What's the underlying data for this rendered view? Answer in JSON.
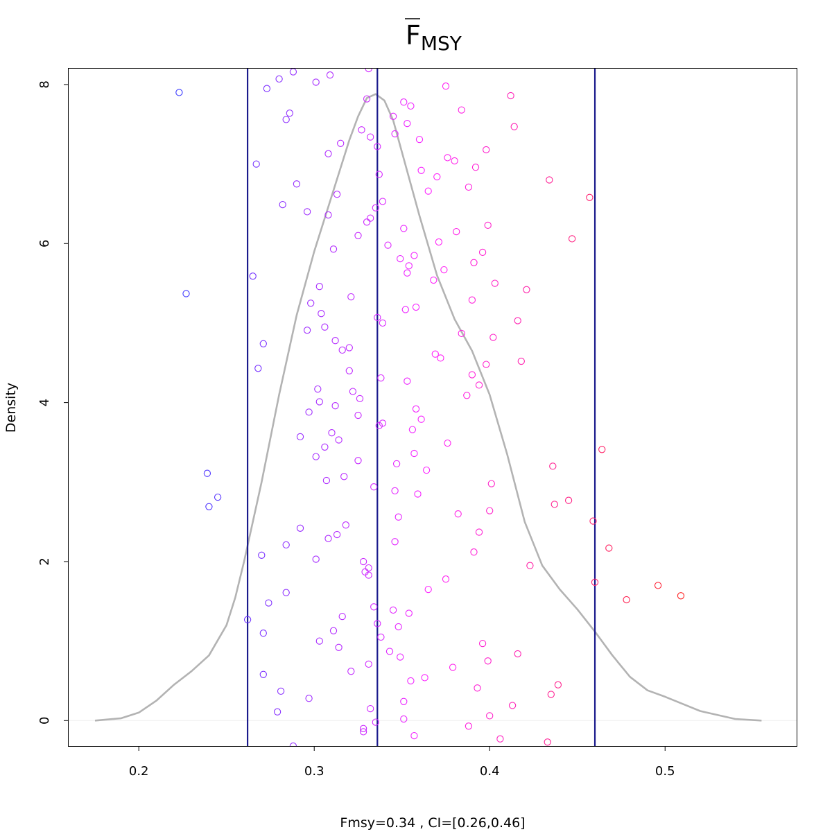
{
  "chart_data": {
    "type": "scatter",
    "title": "F",
    "title_subscript": "MSY",
    "title_overline": true,
    "xlabel": "Fmsy=0.34 , CI=[0.26,0.46]",
    "ylabel": "Density",
    "xlim": [
      0.16,
      0.575
    ],
    "ylim": [
      -0.32,
      8.2
    ],
    "x_ticks": [
      0.2,
      0.3,
      0.4,
      0.5
    ],
    "x_tick_labels": [
      "0.2",
      "0.3",
      "0.4",
      "0.5"
    ],
    "y_ticks": [
      0,
      2,
      4,
      6,
      8
    ],
    "y_tick_labels": [
      "0",
      "2",
      "4",
      "6",
      "8"
    ],
    "grid": false,
    "vertical_lines": {
      "color": "#1a1a8c",
      "x": [
        0.262,
        0.336,
        0.46
      ]
    },
    "density_curve": {
      "color": "#b3b3b3",
      "x": [
        0.175,
        0.19,
        0.2,
        0.21,
        0.22,
        0.23,
        0.24,
        0.25,
        0.255,
        0.26,
        0.27,
        0.28,
        0.29,
        0.3,
        0.31,
        0.32,
        0.325,
        0.33,
        0.335,
        0.34,
        0.345,
        0.35,
        0.36,
        0.37,
        0.38,
        0.39,
        0.4,
        0.41,
        0.42,
        0.43,
        0.44,
        0.45,
        0.46,
        0.47,
        0.48,
        0.49,
        0.5,
        0.52,
        0.54,
        0.555
      ],
      "y": [
        0,
        0.03,
        0.1,
        0.25,
        0.45,
        0.62,
        0.82,
        1.2,
        1.55,
        2.0,
        3.0,
        4.1,
        5.1,
        5.9,
        6.6,
        7.3,
        7.6,
        7.83,
        7.88,
        7.8,
        7.55,
        7.15,
        6.35,
        5.6,
        5.05,
        4.65,
        4.1,
        3.35,
        2.5,
        1.95,
        1.65,
        1.4,
        1.12,
        0.82,
        0.55,
        0.38,
        0.3,
        0.12,
        0.02,
        0
      ]
    },
    "point_color_low": "#3a3aff",
    "point_color_mid": "#ff22ff",
    "point_color_high": "#ff2222",
    "points": [
      [
        0.223,
        7.9
      ],
      [
        0.227,
        5.37
      ],
      [
        0.239,
        3.11
      ],
      [
        0.245,
        2.81
      ],
      [
        0.24,
        2.69
      ],
      [
        0.262,
        1.27
      ],
      [
        0.267,
        7.0
      ],
      [
        0.265,
        5.59
      ],
      [
        0.268,
        4.43
      ],
      [
        0.271,
        4.74
      ],
      [
        0.27,
        2.08
      ],
      [
        0.271,
        1.1
      ],
      [
        0.271,
        0.58
      ],
      [
        0.274,
        1.48
      ],
      [
        0.279,
        0.11
      ],
      [
        0.281,
        0.37
      ],
      [
        0.273,
        7.95
      ],
      [
        0.28,
        8.07
      ],
      [
        0.282,
        6.49
      ],
      [
        0.284,
        7.56
      ],
      [
        0.286,
        7.64
      ],
      [
        0.288,
        8.16
      ],
      [
        0.29,
        6.75
      ],
      [
        0.284,
        2.21
      ],
      [
        0.284,
        1.61
      ],
      [
        0.288,
        -0.32
      ],
      [
        0.292,
        3.57
      ],
      [
        0.292,
        2.42
      ],
      [
        0.296,
        6.4
      ],
      [
        0.296,
        4.91
      ],
      [
        0.297,
        3.88
      ],
      [
        0.298,
        5.25
      ],
      [
        0.297,
        0.28
      ],
      [
        0.301,
        8.03
      ],
      [
        0.301,
        3.32
      ],
      [
        0.301,
        2.03
      ],
      [
        0.302,
        4.17
      ],
      [
        0.303,
        5.46
      ],
      [
        0.303,
        4.01
      ],
      [
        0.304,
        5.12
      ],
      [
        0.303,
        1.0
      ],
      [
        0.306,
        4.95
      ],
      [
        0.306,
        3.44
      ],
      [
        0.307,
        3.02
      ],
      [
        0.308,
        2.29
      ],
      [
        0.308,
        7.13
      ],
      [
        0.308,
        6.36
      ],
      [
        0.309,
        8.12
      ],
      [
        0.31,
        3.62
      ],
      [
        0.311,
        5.93
      ],
      [
        0.311,
        1.13
      ],
      [
        0.312,
        3.96
      ],
      [
        0.312,
        4.78
      ],
      [
        0.313,
        2.34
      ],
      [
        0.313,
        6.62
      ],
      [
        0.314,
        0.92
      ],
      [
        0.314,
        3.53
      ],
      [
        0.315,
        7.26
      ],
      [
        0.316,
        1.31
      ],
      [
        0.316,
        4.66
      ],
      [
        0.317,
        3.07
      ],
      [
        0.318,
        2.46
      ],
      [
        0.32,
        4.69
      ],
      [
        0.32,
        4.4
      ],
      [
        0.321,
        5.33
      ],
      [
        0.321,
        0.62
      ],
      [
        0.322,
        4.14
      ],
      [
        0.325,
        3.84
      ],
      [
        0.325,
        3.27
      ],
      [
        0.325,
        6.1
      ],
      [
        0.326,
        4.05
      ],
      [
        0.327,
        7.43
      ],
      [
        0.328,
        2.0
      ],
      [
        0.328,
        -0.1
      ],
      [
        0.328,
        -0.14
      ],
      [
        0.329,
        1.87
      ],
      [
        0.33,
        7.82
      ],
      [
        0.33,
        6.27
      ],
      [
        0.331,
        1.92
      ],
      [
        0.331,
        1.83
      ],
      [
        0.331,
        0.71
      ],
      [
        0.331,
        8.2
      ],
      [
        0.332,
        7.34
      ],
      [
        0.332,
        6.32
      ],
      [
        0.332,
        0.15
      ],
      [
        0.334,
        1.43
      ],
      [
        0.334,
        2.94
      ],
      [
        0.335,
        -0.02
      ],
      [
        0.335,
        6.45
      ],
      [
        0.336,
        7.22
      ],
      [
        0.336,
        1.22
      ],
      [
        0.336,
        5.07
      ],
      [
        0.337,
        6.87
      ],
      [
        0.337,
        3.71
      ],
      [
        0.338,
        4.31
      ],
      [
        0.338,
        1.05
      ],
      [
        0.339,
        6.53
      ],
      [
        0.339,
        3.74
      ],
      [
        0.339,
        5.0
      ],
      [
        0.342,
        5.98
      ],
      [
        0.343,
        0.87
      ],
      [
        0.345,
        7.6
      ],
      [
        0.345,
        1.39
      ],
      [
        0.346,
        7.38
      ],
      [
        0.346,
        2.89
      ],
      [
        0.346,
        2.25
      ],
      [
        0.347,
        3.23
      ],
      [
        0.348,
        2.56
      ],
      [
        0.348,
        1.18
      ],
      [
        0.349,
        0.8
      ],
      [
        0.349,
        5.81
      ],
      [
        0.351,
        7.78
      ],
      [
        0.351,
        6.19
      ],
      [
        0.351,
        0.24
      ],
      [
        0.351,
        0.02
      ],
      [
        0.352,
        5.17
      ],
      [
        0.353,
        7.51
      ],
      [
        0.353,
        4.27
      ],
      [
        0.353,
        5.63
      ],
      [
        0.354,
        5.72
      ],
      [
        0.354,
        1.35
      ],
      [
        0.355,
        7.73
      ],
      [
        0.355,
        0.5
      ],
      [
        0.356,
        3.66
      ],
      [
        0.357,
        3.36
      ],
      [
        0.357,
        5.85
      ],
      [
        0.357,
        -0.19
      ],
      [
        0.358,
        5.2
      ],
      [
        0.358,
        3.92
      ],
      [
        0.359,
        2.85
      ],
      [
        0.36,
        7.31
      ],
      [
        0.361,
        6.92
      ],
      [
        0.361,
        3.79
      ],
      [
        0.363,
        0.54
      ],
      [
        0.364,
        3.15
      ],
      [
        0.365,
        1.65
      ],
      [
        0.365,
        6.66
      ],
      [
        0.368,
        5.54
      ],
      [
        0.369,
        4.61
      ],
      [
        0.37,
        6.84
      ],
      [
        0.371,
        6.02
      ],
      [
        0.372,
        4.56
      ],
      [
        0.374,
        5.67
      ],
      [
        0.375,
        1.78
      ],
      [
        0.375,
        7.98
      ],
      [
        0.376,
        7.08
      ],
      [
        0.376,
        3.49
      ],
      [
        0.379,
        0.67
      ],
      [
        0.38,
        7.04
      ],
      [
        0.381,
        6.15
      ],
      [
        0.382,
        2.6
      ],
      [
        0.384,
        7.68
      ],
      [
        0.384,
        4.87
      ],
      [
        0.387,
        4.09
      ],
      [
        0.388,
        -0.07
      ],
      [
        0.388,
        6.71
      ],
      [
        0.39,
        5.29
      ],
      [
        0.39,
        4.35
      ],
      [
        0.391,
        5.76
      ],
      [
        0.391,
        2.12
      ],
      [
        0.392,
        6.96
      ],
      [
        0.393,
        0.41
      ],
      [
        0.394,
        2.37
      ],
      [
        0.394,
        4.22
      ],
      [
        0.396,
        5.89
      ],
      [
        0.396,
        0.97
      ],
      [
        0.398,
        4.48
      ],
      [
        0.398,
        7.18
      ],
      [
        0.399,
        6.23
      ],
      [
        0.399,
        0.75
      ],
      [
        0.4,
        2.64
      ],
      [
        0.4,
        0.06
      ],
      [
        0.401,
        2.98
      ],
      [
        0.402,
        4.82
      ],
      [
        0.403,
        5.5
      ],
      [
        0.406,
        -0.23
      ],
      [
        0.412,
        7.86
      ],
      [
        0.413,
        0.19
      ],
      [
        0.414,
        7.47
      ],
      [
        0.416,
        5.03
      ],
      [
        0.416,
        0.84
      ],
      [
        0.418,
        4.52
      ],
      [
        0.421,
        5.42
      ],
      [
        0.423,
        1.95
      ],
      [
        0.433,
        -0.27
      ],
      [
        0.434,
        6.8
      ],
      [
        0.435,
        0.33
      ],
      [
        0.436,
        3.2
      ],
      [
        0.437,
        2.72
      ],
      [
        0.439,
        0.45
      ],
      [
        0.445,
        2.77
      ],
      [
        0.447,
        6.06
      ],
      [
        0.457,
        6.58
      ],
      [
        0.459,
        2.51
      ],
      [
        0.46,
        1.74
      ],
      [
        0.464,
        3.41
      ],
      [
        0.468,
        2.17
      ],
      [
        0.478,
        1.52
      ],
      [
        0.496,
        1.7
      ],
      [
        0.509,
        1.57
      ]
    ]
  }
}
